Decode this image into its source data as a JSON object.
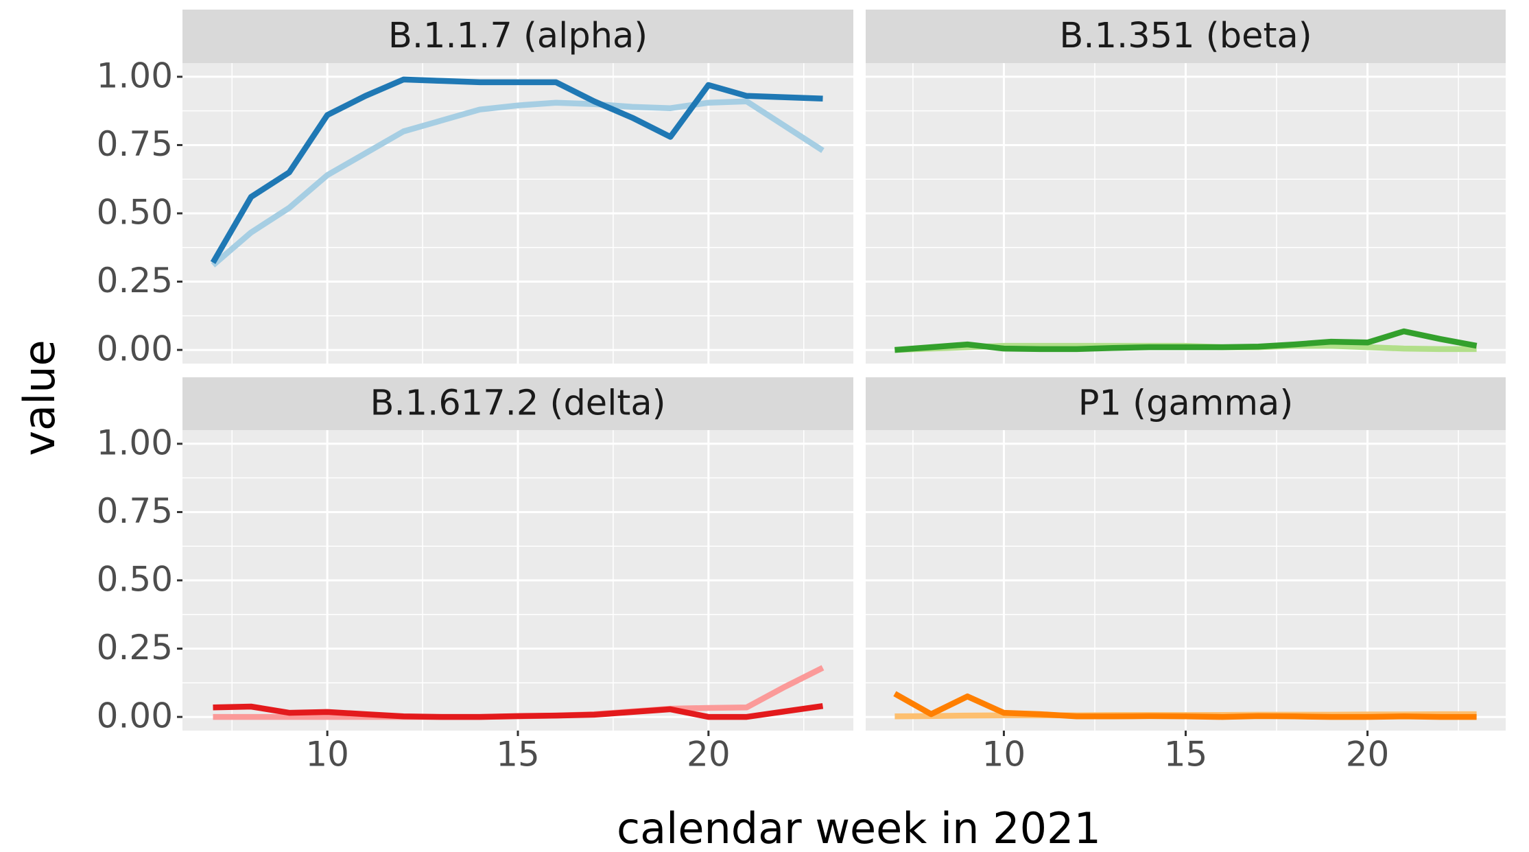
{
  "chart_data": {
    "type": "line",
    "xlabel": "calendar week in 2021",
    "ylabel": "value",
    "x": [
      7,
      8,
      9,
      10,
      11,
      12,
      13,
      14,
      15,
      16,
      17,
      18,
      19,
      20,
      21,
      22,
      23
    ],
    "xlim": [
      6.2,
      23.8
    ],
    "ylim": [
      -0.05,
      1.05
    ],
    "xticks": [
      10,
      15,
      20
    ],
    "yticks": [
      {
        "value": 0,
        "label": "0.00"
      },
      {
        "value": 0.25,
        "label": "0.25"
      },
      {
        "value": 0.5,
        "label": "0.50"
      },
      {
        "value": 0.75,
        "label": "0.75"
      },
      {
        "value": 1,
        "label": "1.00"
      }
    ],
    "grid": true,
    "panels": [
      {
        "title": "B.1.1.7 (alpha)",
        "series": [
          {
            "color": "#a6cee3",
            "values": [
              0.31,
              0.43,
              0.52,
              0.64,
              0.72,
              0.8,
              0.84,
              0.88,
              0.895,
              0.905,
              0.9,
              0.89,
              0.885,
              0.905,
              0.91,
              0.82,
              0.73
            ]
          },
          {
            "color": "#1f78b4",
            "values": [
              0.32,
              0.56,
              0.65,
              0.86,
              0.93,
              0.99,
              0.985,
              0.98,
              0.98,
              0.98,
              0.91,
              0.85,
              0.78,
              0.97,
              0.93,
              0.925,
              0.92
            ]
          }
        ]
      },
      {
        "title": "B.1.351 (beta)",
        "series": [
          {
            "color": "#b2df8a",
            "values": [
              0.0,
              0.005,
              0.01,
              0.015,
              0.015,
              0.015,
              0.015,
              0.015,
              0.015,
              0.01,
              0.01,
              0.015,
              0.015,
              0.01,
              0.005,
              0.003,
              0.003
            ]
          },
          {
            "color": "#33a02c",
            "values": [
              0.0,
              0.01,
              0.02,
              0.005,
              0.003,
              0.003,
              0.007,
              0.01,
              0.01,
              0.01,
              0.012,
              0.02,
              0.03,
              0.027,
              0.068,
              0.04,
              0.015
            ]
          }
        ]
      },
      {
        "title": "B.1.617.2 (delta)",
        "series": [
          {
            "color": "#fb9a99",
            "values": [
              0.0,
              0.0,
              0.0,
              0.0,
              0.0,
              0.0,
              0.0,
              0.0,
              0.002,
              0.005,
              0.01,
              0.02,
              0.03,
              0.033,
              0.035,
              0.11,
              0.18
            ]
          },
          {
            "color": "#e31a1c",
            "values": [
              0.035,
              0.038,
              0.015,
              0.018,
              0.01,
              0.002,
              0.0,
              0.0,
              0.003,
              0.005,
              0.008,
              0.018,
              0.028,
              0.0,
              0.0,
              0.02,
              0.04
            ]
          }
        ]
      },
      {
        "title": "P1 (gamma)",
        "series": [
          {
            "color": "#fdbf6f",
            "values": [
              0.002,
              0.003,
              0.005,
              0.006,
              0.006,
              0.006,
              0.007,
              0.007,
              0.007,
              0.007,
              0.008,
              0.008,
              0.008,
              0.009,
              0.009,
              0.01,
              0.01
            ]
          },
          {
            "color": "#ff7f00",
            "values": [
              0.085,
              0.01,
              0.075,
              0.015,
              0.01,
              0.002,
              0.002,
              0.003,
              0.002,
              0.0,
              0.003,
              0.002,
              0.0,
              0.0,
              0.002,
              0.0,
              0.0
            ]
          }
        ]
      }
    ]
  }
}
